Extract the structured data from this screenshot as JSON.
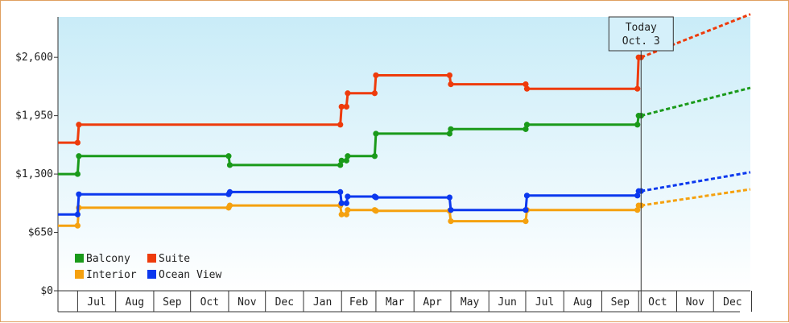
{
  "chart_data": {
    "type": "line",
    "style": "step",
    "y_ticks": [
      0,
      650,
      1300,
      1950,
      2600
    ],
    "y_tick_labels": [
      "$0",
      "$650",
      "$1,300",
      "$1,950",
      "$2,600"
    ],
    "ylim": [
      0,
      3050
    ],
    "x_month_labels": [
      "Jul",
      "Aug",
      "Sep",
      "Oct",
      "Nov",
      "Dec",
      "Jan",
      "Feb",
      "Mar",
      "Apr",
      "May",
      "Jun",
      "Jul",
      "Aug",
      "Sep",
      "Oct",
      "Nov",
      "Dec"
    ],
    "x_range": [
      "2013-06-15",
      "2014-12-31"
    ],
    "grid": false,
    "legend_position": "bottom-left",
    "today": {
      "label_line1": "Today",
      "label_line2": "Oct. 3",
      "date": "2014-10-03"
    },
    "colors": {
      "Balcony": "#1a9a1a",
      "Suite": "#ee3b0b",
      "Interior": "#f5a10f",
      "Ocean View": "#0b38ee"
    },
    "series": [
      {
        "name": "Balcony",
        "points": [
          [
            "2013-06-15",
            1300
          ],
          [
            "2013-07-01",
            1300
          ],
          [
            "2013-07-02",
            1500
          ],
          [
            "2013-11-01",
            1500
          ],
          [
            "2013-11-02",
            1400
          ],
          [
            "2014-01-31",
            1400
          ],
          [
            "2014-02-01",
            1450
          ],
          [
            "2014-02-05",
            1450
          ],
          [
            "2014-02-06",
            1500
          ],
          [
            "2014-02-28",
            1500
          ],
          [
            "2014-03-01",
            1750
          ],
          [
            "2014-04-30",
            1750
          ],
          [
            "2014-05-01",
            1800
          ],
          [
            "2014-07-01",
            1800
          ],
          [
            "2014-07-02",
            1850
          ],
          [
            "2014-09-30",
            1850
          ],
          [
            "2014-10-01",
            1950
          ],
          [
            "2014-10-03",
            1950
          ]
        ],
        "forecast": [
          [
            "2014-10-03",
            1950
          ],
          [
            "2014-12-31",
            2260
          ]
        ]
      },
      {
        "name": "Suite",
        "points": [
          [
            "2013-06-15",
            1650
          ],
          [
            "2013-07-01",
            1650
          ],
          [
            "2013-07-02",
            1850
          ],
          [
            "2014-01-31",
            1850
          ],
          [
            "2014-02-01",
            2050
          ],
          [
            "2014-02-05",
            2050
          ],
          [
            "2014-02-06",
            2200
          ],
          [
            "2014-02-28",
            2200
          ],
          [
            "2014-03-01",
            2400
          ],
          [
            "2014-04-30",
            2400
          ],
          [
            "2014-05-01",
            2300
          ],
          [
            "2014-07-01",
            2300
          ],
          [
            "2014-07-02",
            2250
          ],
          [
            "2014-09-30",
            2250
          ],
          [
            "2014-10-01",
            2600
          ],
          [
            "2014-10-03",
            2600
          ]
        ],
        "forecast": [
          [
            "2014-10-03",
            2600
          ],
          [
            "2014-12-31",
            3080
          ]
        ]
      },
      {
        "name": "Interior",
        "points": [
          [
            "2013-06-15",
            725
          ],
          [
            "2013-07-01",
            725
          ],
          [
            "2013-07-02",
            925
          ],
          [
            "2013-11-01",
            925
          ],
          [
            "2013-11-02",
            950
          ],
          [
            "2014-01-31",
            950
          ],
          [
            "2014-02-01",
            850
          ],
          [
            "2014-02-05",
            850
          ],
          [
            "2014-02-06",
            900
          ],
          [
            "2014-02-28",
            900
          ],
          [
            "2014-03-01",
            890
          ],
          [
            "2014-04-30",
            890
          ],
          [
            "2014-05-01",
            775
          ],
          [
            "2014-07-01",
            775
          ],
          [
            "2014-07-02",
            900
          ],
          [
            "2014-09-30",
            900
          ],
          [
            "2014-10-01",
            950
          ],
          [
            "2014-10-03",
            950
          ]
        ],
        "forecast": [
          [
            "2014-10-03",
            950
          ],
          [
            "2014-12-31",
            1130
          ]
        ]
      },
      {
        "name": "Ocean View",
        "points": [
          [
            "2013-06-15",
            850
          ],
          [
            "2013-07-01",
            850
          ],
          [
            "2013-07-02",
            1075
          ],
          [
            "2013-11-01",
            1075
          ],
          [
            "2013-11-02",
            1100
          ],
          [
            "2014-01-31",
            1100
          ],
          [
            "2014-02-01",
            975
          ],
          [
            "2014-02-05",
            975
          ],
          [
            "2014-02-06",
            1050
          ],
          [
            "2014-02-28",
            1050
          ],
          [
            "2014-03-01",
            1040
          ],
          [
            "2014-04-30",
            1040
          ],
          [
            "2014-05-01",
            900
          ],
          [
            "2014-07-01",
            900
          ],
          [
            "2014-07-02",
            1060
          ],
          [
            "2014-09-30",
            1060
          ],
          [
            "2014-10-01",
            1110
          ],
          [
            "2014-10-03",
            1110
          ]
        ],
        "forecast": [
          [
            "2014-10-03",
            1110
          ],
          [
            "2014-12-31",
            1320
          ]
        ]
      }
    ],
    "legend_order": [
      "Balcony",
      "Suite",
      "Interior",
      "Ocean View"
    ]
  }
}
